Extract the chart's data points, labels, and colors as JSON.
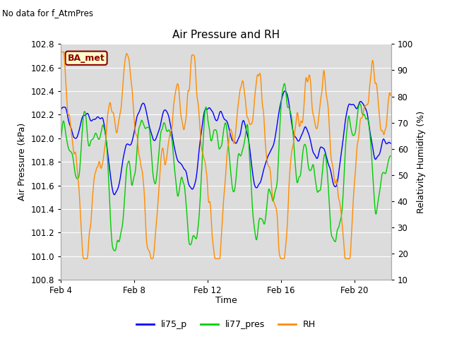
{
  "title": "Air Pressure and RH",
  "top_left_text": "No data for f_AtmPres",
  "xlabel": "Time",
  "ylabel_left": "Air Pressure (kPa)",
  "ylabel_right": "Relativity Humidity (%)",
  "ylim_left": [
    100.8,
    102.8
  ],
  "ylim_right": [
    10,
    100
  ],
  "yticks_left": [
    100.8,
    101.0,
    101.2,
    101.4,
    101.6,
    101.8,
    102.0,
    102.2,
    102.4,
    102.6,
    102.8
  ],
  "yticks_right": [
    10,
    20,
    30,
    40,
    50,
    60,
    70,
    80,
    90,
    100
  ],
  "xtick_days": [
    4,
    8,
    12,
    16,
    20
  ],
  "xtick_labels": [
    "Feb 4",
    "Feb 8",
    "Feb 12",
    "Feb 16",
    "Feb 20"
  ],
  "legend_entries": [
    "li75_p",
    "li77_pres",
    "RH"
  ],
  "legend_colors": [
    "#0000ff",
    "#00cc00",
    "#ff8c00"
  ],
  "line_colors": [
    "#0000ff",
    "#00cc00",
    "#ff8c00"
  ],
  "box_label": "BA_met",
  "box_bg": "#ffffcc",
  "box_border": "#8b0000",
  "box_text_color": "#8b0000",
  "plot_bg": "#dcdcdc",
  "grid_color": "#ffffff",
  "fig_bg": "#ffffff"
}
